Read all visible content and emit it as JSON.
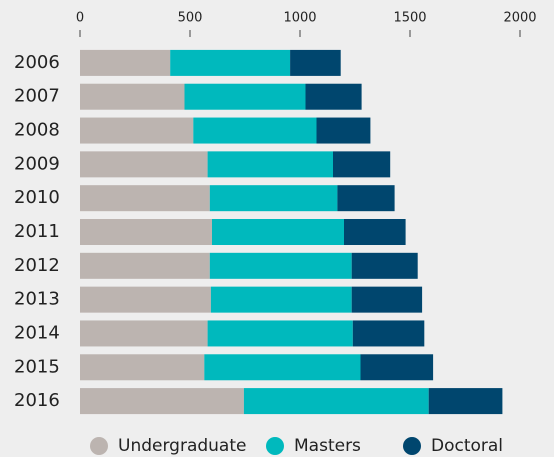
{
  "chart_data": {
    "type": "stacked_barh",
    "categories": [
      "2006",
      "2007",
      "2008",
      "2009",
      "2010",
      "2011",
      "2012",
      "2013",
      "2014",
      "2015",
      "2016"
    ],
    "series": [
      {
        "name": "Undergraduate",
        "color": "#bcb4b0",
        "values": [
          410,
          475,
          515,
          580,
          590,
          600,
          590,
          595,
          580,
          565,
          745
        ]
      },
      {
        "name": "Masters",
        "color": "#00b9bd",
        "values": [
          545,
          550,
          560,
          570,
          580,
          600,
          645,
          640,
          660,
          710,
          840
        ]
      },
      {
        "name": "Doctoral",
        "color": "#00466e",
        "values": [
          230,
          255,
          245,
          260,
          260,
          280,
          300,
          320,
          325,
          330,
          335
        ]
      }
    ],
    "xlim": [
      0,
      2000
    ],
    "xticks": [
      0,
      500,
      1000,
      1500,
      2000
    ]
  }
}
